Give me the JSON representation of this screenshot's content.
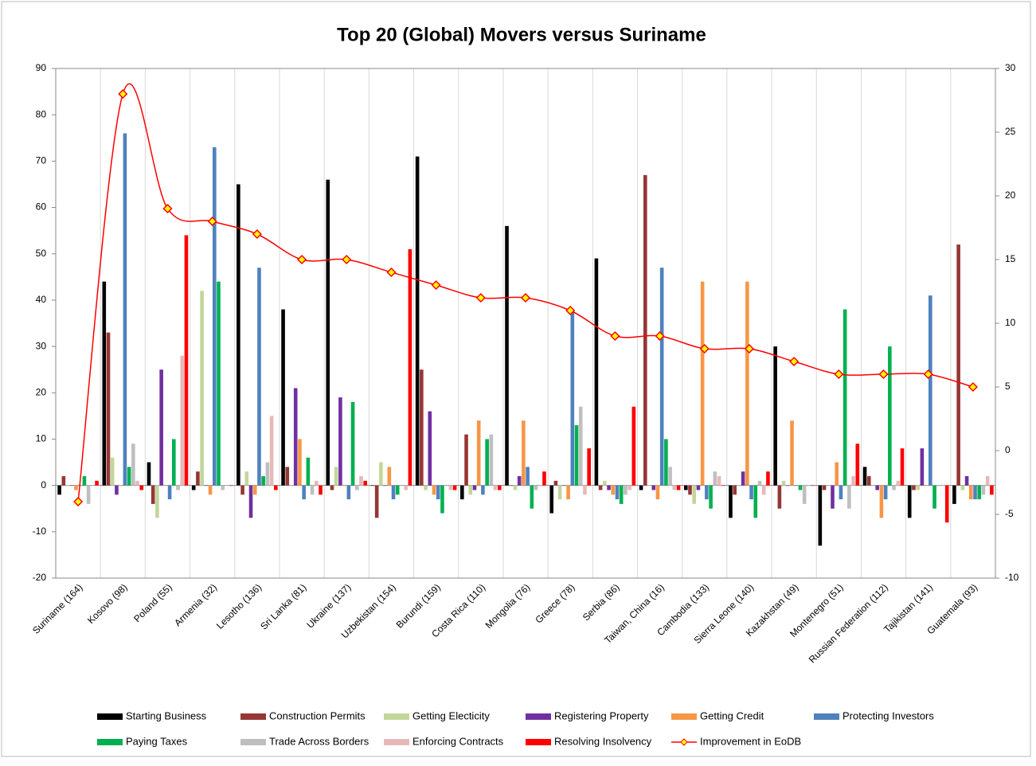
{
  "chart_data": {
    "type": "bar",
    "title": "Top 20 (Global) Movers versus Suriname",
    "categories": [
      "Suriname (164)",
      "Kosovo (98)",
      "Poland (55)",
      "Armenia (32)",
      "Lesotho (136)",
      "Sri Lanka (81)",
      "Ukraine (137)",
      "Uzbekistan (154)",
      "Burundi (159)",
      "Costa Rica (110)",
      "Mongolia (76)",
      "Greece (78)",
      "Serbia (86)",
      "Taiwan, China (16)",
      "Cambodia (133)",
      "Sierra Leone (140)",
      "Kazakhstan (49)",
      "Montenegro (51)",
      "Russian Federation (112)",
      "Tajikistan (141)",
      "Guatemala (93)"
    ],
    "series": [
      {
        "name": "Starting Business",
        "color": "#000000",
        "values": [
          -2,
          44,
          5,
          -1,
          65,
          38,
          66,
          0,
          71,
          -3,
          56,
          -6,
          49,
          -1,
          -1,
          -7,
          30,
          -13,
          4,
          -7,
          -4
        ]
      },
      {
        "name": "Construction Permits",
        "color": "#953735",
        "values": [
          2,
          33,
          -4,
          3,
          -2,
          4,
          -1,
          -7,
          25,
          11,
          0,
          1,
          -1,
          67,
          -2,
          -2,
          -5,
          -1,
          2,
          -1,
          52
        ]
      },
      {
        "name": "Getting Electicity",
        "color": "#c3d69b",
        "values": [
          0,
          6,
          -7,
          42,
          3,
          0,
          4,
          5,
          -1,
          -2,
          -1,
          -3,
          1,
          0,
          -4,
          0,
          1,
          0,
          0,
          -1,
          -1
        ]
      },
      {
        "name": "Registering Property",
        "color": "#7030a0",
        "values": [
          0,
          -2,
          25,
          0,
          -7,
          21,
          19,
          0,
          16,
          -1,
          2,
          0,
          -1,
          -1,
          -1,
          3,
          0,
          -5,
          -1,
          8,
          2
        ]
      },
      {
        "name": "Getting Credit",
        "color": "#f79646",
        "values": [
          -1,
          0,
          0,
          -2,
          -2,
          10,
          0,
          4,
          -2,
          14,
          14,
          -3,
          -2,
          -3,
          44,
          44,
          14,
          5,
          -7,
          0,
          -3
        ]
      },
      {
        "name": "Protecting Investors",
        "color": "#4f81bd",
        "values": [
          0,
          76,
          -3,
          73,
          47,
          -3,
          -3,
          -3,
          -3,
          -2,
          4,
          38,
          -3,
          47,
          -3,
          -3,
          0,
          -3,
          -3,
          41,
          -3
        ]
      },
      {
        "name": "Paying Taxes",
        "color": "#00b050",
        "values": [
          2,
          4,
          10,
          44,
          2,
          6,
          18,
          -2,
          -6,
          10,
          -5,
          13,
          -4,
          10,
          -5,
          -7,
          -1,
          38,
          30,
          -5,
          -3
        ]
      },
      {
        "name": "Trade Across Borders",
        "color": "#bfbfbf",
        "values": [
          -4,
          9,
          -1,
          -1,
          5,
          -2,
          -1,
          0,
          0,
          11,
          -1,
          17,
          -2,
          4,
          3,
          1,
          -4,
          -5,
          -1,
          0,
          -2
        ]
      },
      {
        "name": "Enforcing Contracts",
        "color": "#e6b9b8",
        "values": [
          0,
          1,
          28,
          0,
          15,
          1,
          2,
          -1,
          -1,
          -1,
          0,
          -2,
          -1,
          -1,
          2,
          -2,
          0,
          2,
          1,
          0,
          2
        ]
      },
      {
        "name": "Resolving Insolvency",
        "color": "#ff0000",
        "values": [
          1,
          -1,
          54,
          0,
          -1,
          -2,
          1,
          51,
          -1,
          -1,
          3,
          8,
          17,
          -1,
          0,
          3,
          0,
          9,
          8,
          -8,
          -2
        ]
      },
      {
        "name": "Improvement in EoDB",
        "type": "line",
        "axis": "y2",
        "color": "#ff0000",
        "values": [
          -4,
          28,
          19,
          18,
          17,
          15,
          15,
          14,
          13,
          12,
          12,
          11,
          9,
          9,
          8,
          8,
          7,
          6,
          6,
          6,
          5
        ]
      }
    ],
    "ylim": [
      -20,
      90
    ],
    "yticks": [
      -20,
      -10,
      0,
      10,
      20,
      30,
      40,
      50,
      60,
      70,
      80,
      90
    ],
    "y2lim": [
      -10,
      30
    ],
    "y2ticks": [
      -10,
      -5,
      0,
      5,
      10,
      15,
      20,
      25,
      30
    ],
    "grid": true
  }
}
